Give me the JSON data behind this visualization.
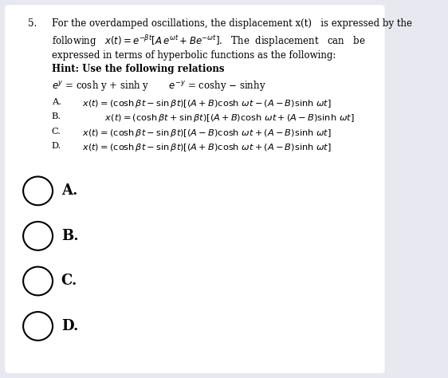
{
  "bg_color": "#e8e8f0",
  "card_color": "#ffffff",
  "title_num": "5.",
  "font_size_body": 8.5,
  "font_size_options": 8.2,
  "font_size_radio": 13,
  "radio_labels": [
    "A.",
    "B.",
    "C.",
    "D."
  ]
}
